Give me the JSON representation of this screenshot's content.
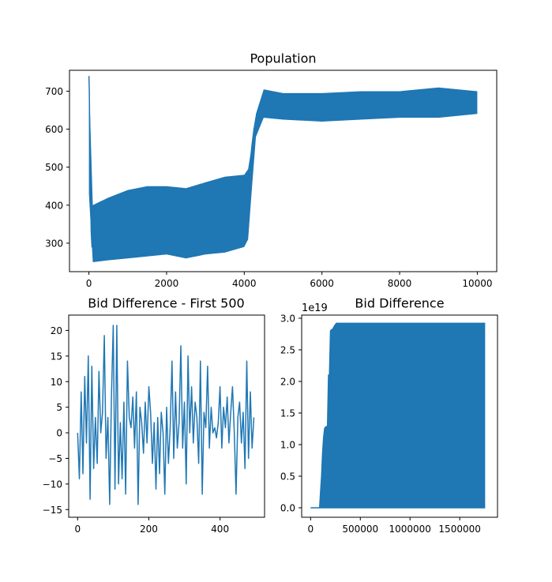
{
  "style": {
    "line_color": "#1f77b4",
    "axes_color": "#000000",
    "background": "#ffffff"
  },
  "chart_data": [
    {
      "id": "population",
      "type": "line",
      "title": "Population",
      "xlabel": "",
      "ylabel": "",
      "xlim": [
        -500,
        10500
      ],
      "ylim": [
        225,
        755
      ],
      "xticks": [
        0,
        2000,
        4000,
        6000,
        8000,
        10000
      ],
      "xtick_labels": [
        "0",
        "2000",
        "4000",
        "6000",
        "8000",
        "10000"
      ],
      "yticks": [
        300,
        400,
        500,
        600,
        700
      ],
      "ytick_labels": [
        "300",
        "400",
        "500",
        "600",
        "700"
      ],
      "grid": false,
      "series": [
        {
          "x": [
            0,
            10,
            20,
            30,
            40,
            50,
            60,
            80,
            100,
            150,
            200,
            300,
            500,
            800,
            1000,
            1500,
            1800,
            2000,
            2200,
            2500,
            2800,
            3000,
            3300,
            3600,
            3900,
            4000,
            4050,
            4100,
            4150,
            4200,
            4250,
            4300,
            4400,
            4500,
            4700,
            5000,
            5500,
            6000,
            6500,
            7000,
            7500,
            8000,
            8500,
            9000,
            9500,
            10000
          ],
          "y": [
            740,
            700,
            600,
            450,
            500,
            400,
            330,
            290,
            300,
            320,
            340,
            350,
            330,
            340,
            350,
            360,
            350,
            360,
            345,
            355,
            365,
            370,
            375,
            380,
            390,
            400,
            420,
            460,
            510,
            560,
            600,
            630,
            660,
            675,
            665,
            660,
            655,
            660,
            662,
            658,
            663,
            665,
            660,
            668,
            662,
            665
          ],
          "envelope_x": [
            0,
            100,
            500,
            1000,
            1500,
            2000,
            2500,
            3000,
            3500,
            4000,
            4100,
            4200,
            4300,
            4500,
            5000,
            6000,
            7000,
            8000,
            9000,
            10000
          ],
          "envelope_high": [
            740,
            400,
            420,
            440,
            450,
            450,
            445,
            460,
            475,
            480,
            495,
            560,
            640,
            705,
            695,
            695,
            700,
            700,
            710,
            700
          ],
          "envelope_low": [
            430,
            250,
            255,
            260,
            265,
            270,
            260,
            270,
            275,
            290,
            310,
            450,
            580,
            630,
            625,
            620,
            625,
            630,
            630,
            640
          ]
        }
      ]
    },
    {
      "id": "bid_first_500",
      "type": "line",
      "title": "Bid Difference - First 500",
      "xlabel": "",
      "ylabel": "",
      "xlim": [
        -25,
        525
      ],
      "ylim": [
        -16.5,
        23
      ],
      "xticks": [
        0,
        200,
        400
      ],
      "xtick_labels": [
        "0",
        "200",
        "400"
      ],
      "yticks": [
        -15,
        -10,
        -5,
        0,
        5,
        10,
        15,
        20
      ],
      "ytick_labels": [
        "−15",
        "−10",
        "−5",
        "0",
        "5",
        "10",
        "15",
        "20"
      ],
      "grid": false,
      "series": [
        {
          "x": [
            0,
            5,
            10,
            15,
            20,
            25,
            30,
            35,
            40,
            45,
            50,
            55,
            60,
            65,
            70,
            75,
            80,
            85,
            90,
            95,
            100,
            105,
            110,
            115,
            120,
            125,
            130,
            135,
            140,
            145,
            150,
            155,
            160,
            165,
            170,
            175,
            180,
            185,
            190,
            195,
            200,
            205,
            210,
            215,
            220,
            225,
            230,
            235,
            240,
            245,
            250,
            255,
            260,
            265,
            270,
            275,
            280,
            285,
            290,
            295,
            300,
            305,
            310,
            315,
            320,
            325,
            330,
            335,
            340,
            345,
            350,
            355,
            360,
            365,
            370,
            375,
            380,
            385,
            390,
            395,
            400,
            405,
            410,
            415,
            420,
            425,
            430,
            435,
            440,
            445,
            450,
            455,
            460,
            465,
            470,
            475,
            480,
            485,
            490,
            495
          ],
          "y": [
            0,
            -9,
            8,
            -8,
            11,
            -2,
            15,
            -13,
            13,
            -7,
            3,
            -6,
            12,
            0,
            4,
            19,
            -5,
            3,
            -14,
            7,
            21,
            -11,
            21,
            -10,
            2,
            -9,
            6,
            -12,
            14,
            3,
            1,
            7,
            -3,
            8,
            -14,
            5,
            2,
            -4,
            6,
            -2,
            9,
            4,
            -6,
            2,
            -11,
            3,
            -8,
            4,
            0,
            -12,
            5,
            -6,
            1,
            14,
            -5,
            8,
            -3,
            2,
            17,
            -3,
            6,
            -10,
            15,
            0,
            9,
            -2,
            6,
            3,
            -6,
            14,
            -12,
            4,
            1,
            13,
            -3,
            5,
            0,
            1,
            -1,
            2,
            9,
            -3,
            5,
            1,
            7,
            -2,
            4,
            9,
            0,
            -12,
            3,
            6,
            -2,
            4,
            -7,
            14,
            -5,
            8,
            -3,
            3
          ]
        }
      ]
    },
    {
      "id": "bid_difference",
      "type": "area",
      "title": "Bid Difference",
      "xlabel": "",
      "ylabel": "",
      "offset_label": "1e19",
      "xlim": [
        -90000,
        1880000
      ],
      "ylim": [
        -0.15,
        3.05
      ],
      "xticks": [
        0,
        500000,
        1000000,
        1500000
      ],
      "xtick_labels": [
        "0",
        "500000",
        "1000000",
        "1500000"
      ],
      "yticks": [
        0.0,
        0.5,
        1.0,
        1.5,
        2.0,
        2.5,
        3.0
      ],
      "ytick_labels": [
        "0.0",
        "0.5",
        "1.0",
        "1.5",
        "2.0",
        "2.5",
        "3.0"
      ],
      "grid": false,
      "series": [
        {
          "x": [
            0,
            90000,
            100000,
            110000,
            120000,
            130000,
            140000,
            150000,
            160000,
            170000,
            180000,
            190000,
            200000,
            210000,
            220000,
            230000,
            240000,
            250000,
            260000,
            270000,
            1750000
          ],
          "y_high": [
            0,
            0,
            0.25,
            0.5,
            0.85,
            1.1,
            1.25,
            1.28,
            1.28,
            1.3,
            2.1,
            2.1,
            2.8,
            2.82,
            2.82,
            2.85,
            2.88,
            2.9,
            2.92,
            2.92,
            2.92
          ],
          "y_low": [
            0,
            0,
            0,
            0,
            0,
            0,
            0,
            0,
            0,
            0,
            0,
            0,
            0,
            0,
            0,
            0,
            0,
            0,
            0,
            0,
            0
          ]
        }
      ]
    }
  ]
}
